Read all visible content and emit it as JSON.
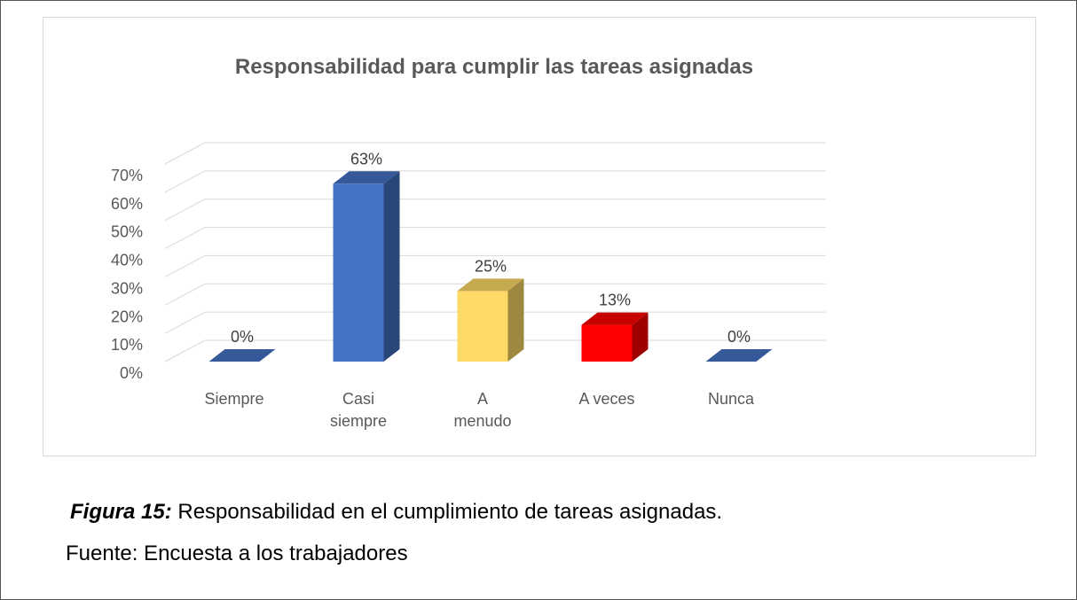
{
  "chart_data": {
    "type": "bar3d",
    "title": "Responsabilidad para cumplir las tareas asignadas",
    "categories": [
      "Siempre",
      "Casi siempre",
      "A menudo",
      "A veces",
      "Nunca"
    ],
    "values": [
      0,
      63,
      25,
      13,
      0
    ],
    "value_labels": [
      "0%",
      "63%",
      "25%",
      "13%",
      "0%"
    ],
    "colors": [
      "#4472c4",
      "#4472c4",
      "#ffd966",
      "#ff0000",
      "#4472c4"
    ],
    "ylim": [
      0,
      70
    ],
    "yticks": [
      {
        "value": 0,
        "label": "0%"
      },
      {
        "value": 10,
        "label": "10%"
      },
      {
        "value": 20,
        "label": "20%"
      },
      {
        "value": 30,
        "label": "30%"
      },
      {
        "value": 40,
        "label": "40%"
      },
      {
        "value": 50,
        "label": "50%"
      },
      {
        "value": 60,
        "label": "60%"
      },
      {
        "value": 70,
        "label": "70%"
      }
    ],
    "grid": true
  },
  "caption": {
    "label": "Figura 15:",
    "text": "Responsabilidad en el cumplimiento de tareas asignadas."
  },
  "source": "Fuente: Encuesta a los trabajadores"
}
